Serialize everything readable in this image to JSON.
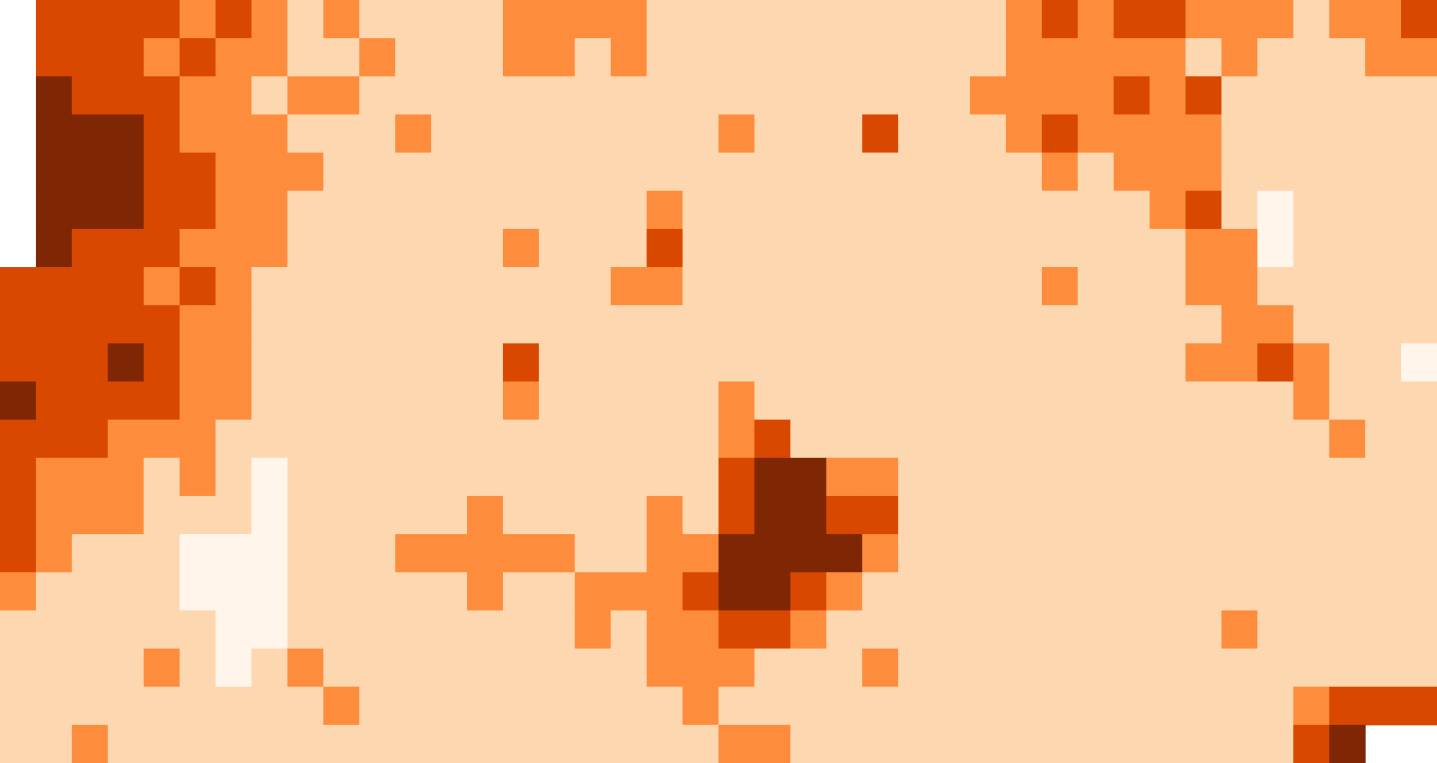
{
  "grid": [
    [
      null,
      3,
      3,
      3,
      3,
      2,
      3,
      2,
      1,
      2,
      1,
      1,
      1,
      1,
      2,
      2,
      2,
      2,
      1,
      1,
      1,
      1,
      1,
      1,
      1,
      1,
      1,
      1,
      2,
      3,
      2,
      3,
      3,
      2,
      2,
      2,
      1,
      2,
      2,
      3
    ],
    [
      null,
      3,
      3,
      3,
      2,
      3,
      2,
      2,
      1,
      1,
      2,
      1,
      1,
      1,
      2,
      2,
      1,
      2,
      1,
      1,
      1,
      1,
      1,
      1,
      1,
      1,
      1,
      1,
      2,
      2,
      2,
      2,
      2,
      1,
      2,
      1,
      1,
      1,
      2,
      2
    ],
    [
      null,
      4,
      3,
      3,
      3,
      2,
      2,
      1,
      2,
      2,
      1,
      1,
      1,
      1,
      1,
      1,
      1,
      1,
      1,
      1,
      1,
      1,
      1,
      1,
      1,
      1,
      1,
      2,
      2,
      2,
      2,
      3,
      2,
      3,
      1,
      1,
      1,
      1,
      1,
      1
    ],
    [
      null,
      4,
      4,
      4,
      3,
      2,
      2,
      2,
      1,
      1,
      1,
      2,
      1,
      1,
      1,
      1,
      1,
      1,
      1,
      1,
      2,
      1,
      1,
      1,
      3,
      1,
      1,
      1,
      2,
      3,
      2,
      2,
      2,
      2,
      1,
      1,
      1,
      1,
      1,
      1
    ],
    [
      null,
      4,
      4,
      4,
      3,
      3,
      2,
      2,
      2,
      1,
      1,
      1,
      1,
      1,
      1,
      1,
      1,
      1,
      1,
      1,
      1,
      1,
      1,
      1,
      1,
      1,
      1,
      1,
      1,
      2,
      1,
      2,
      2,
      2,
      1,
      1,
      1,
      1,
      1,
      1
    ],
    [
      null,
      4,
      4,
      4,
      3,
      3,
      2,
      2,
      1,
      1,
      1,
      1,
      1,
      1,
      1,
      1,
      1,
      1,
      2,
      1,
      1,
      1,
      1,
      1,
      1,
      1,
      1,
      1,
      1,
      1,
      1,
      1,
      2,
      3,
      1,
      0,
      1,
      1,
      1,
      1
    ],
    [
      null,
      4,
      3,
      3,
      3,
      2,
      2,
      2,
      1,
      1,
      1,
      1,
      1,
      1,
      2,
      1,
      1,
      1,
      3,
      1,
      1,
      1,
      1,
      1,
      1,
      1,
      1,
      1,
      1,
      1,
      1,
      1,
      1,
      2,
      2,
      0,
      1,
      1,
      1,
      1
    ],
    [
      3,
      3,
      3,
      3,
      2,
      3,
      2,
      1,
      1,
      1,
      1,
      1,
      1,
      1,
      1,
      1,
      1,
      2,
      2,
      1,
      1,
      1,
      1,
      1,
      1,
      1,
      1,
      1,
      1,
      2,
      1,
      1,
      1,
      2,
      2,
      1,
      1,
      1,
      1,
      1
    ],
    [
      3,
      3,
      3,
      3,
      3,
      2,
      2,
      1,
      1,
      1,
      1,
      1,
      1,
      1,
      1,
      1,
      1,
      1,
      1,
      1,
      1,
      1,
      1,
      1,
      1,
      1,
      1,
      1,
      1,
      1,
      1,
      1,
      1,
      1,
      2,
      2,
      1,
      1,
      1,
      1
    ],
    [
      3,
      3,
      3,
      4,
      3,
      2,
      2,
      1,
      1,
      1,
      1,
      1,
      1,
      1,
      3,
      1,
      1,
      1,
      1,
      1,
      1,
      1,
      1,
      1,
      1,
      1,
      1,
      1,
      1,
      1,
      1,
      1,
      1,
      2,
      2,
      3,
      2,
      1,
      1,
      0
    ],
    [
      4,
      3,
      3,
      3,
      3,
      2,
      2,
      1,
      1,
      1,
      1,
      1,
      1,
      1,
      2,
      1,
      1,
      1,
      1,
      1,
      2,
      1,
      1,
      1,
      1,
      1,
      1,
      1,
      1,
      1,
      1,
      1,
      1,
      1,
      1,
      1,
      2,
      1,
      1,
      1
    ],
    [
      3,
      3,
      3,
      2,
      2,
      2,
      1,
      1,
      1,
      1,
      1,
      1,
      1,
      1,
      1,
      1,
      1,
      1,
      1,
      1,
      2,
      3,
      1,
      1,
      1,
      1,
      1,
      1,
      1,
      1,
      1,
      1,
      1,
      1,
      1,
      1,
      1,
      2,
      1,
      1
    ],
    [
      3,
      2,
      2,
      2,
      1,
      2,
      1,
      0,
      1,
      1,
      1,
      1,
      1,
      1,
      1,
      1,
      1,
      1,
      1,
      1,
      3,
      4,
      4,
      2,
      2,
      1,
      1,
      1,
      1,
      1,
      1,
      1,
      1,
      1,
      1,
      1,
      1,
      1,
      1,
      1
    ],
    [
      3,
      2,
      2,
      2,
      1,
      1,
      1,
      0,
      1,
      1,
      1,
      1,
      1,
      2,
      1,
      1,
      1,
      1,
      2,
      1,
      3,
      4,
      4,
      3,
      3,
      1,
      1,
      1,
      1,
      1,
      1,
      1,
      1,
      1,
      1,
      1,
      1,
      1,
      1,
      1
    ],
    [
      3,
      2,
      1,
      1,
      1,
      0,
      0,
      0,
      1,
      1,
      1,
      2,
      2,
      2,
      2,
      2,
      1,
      1,
      2,
      2,
      4,
      4,
      4,
      4,
      2,
      1,
      1,
      1,
      1,
      1,
      1,
      1,
      1,
      1,
      1,
      1,
      1,
      1,
      1,
      1
    ],
    [
      2,
      1,
      1,
      1,
      1,
      0,
      0,
      0,
      1,
      1,
      1,
      1,
      1,
      2,
      1,
      1,
      2,
      2,
      2,
      3,
      4,
      4,
      3,
      2,
      1,
      1,
      1,
      1,
      1,
      1,
      1,
      1,
      1,
      1,
      1,
      1,
      1,
      1,
      1,
      1
    ],
    [
      1,
      1,
      1,
      1,
      1,
      1,
      0,
      0,
      1,
      1,
      1,
      1,
      1,
      1,
      1,
      1,
      2,
      1,
      2,
      2,
      3,
      3,
      2,
      1,
      1,
      1,
      1,
      1,
      1,
      1,
      1,
      1,
      1,
      1,
      2,
      1,
      1,
      1,
      1,
      1
    ],
    [
      1,
      1,
      1,
      1,
      2,
      1,
      0,
      1,
      2,
      1,
      1,
      1,
      1,
      1,
      1,
      1,
      1,
      1,
      2,
      2,
      2,
      1,
      1,
      1,
      2,
      1,
      1,
      1,
      1,
      1,
      1,
      1,
      1,
      1,
      1,
      1,
      1,
      1,
      1,
      1
    ],
    [
      1,
      1,
      1,
      1,
      1,
      1,
      1,
      1,
      1,
      2,
      1,
      1,
      1,
      1,
      1,
      1,
      1,
      1,
      1,
      2,
      1,
      1,
      1,
      1,
      1,
      1,
      1,
      1,
      1,
      1,
      1,
      1,
      1,
      1,
      1,
      1,
      2,
      3,
      3,
      3
    ],
    [
      1,
      1,
      2,
      1,
      1,
      1,
      1,
      1,
      1,
      1,
      1,
      1,
      1,
      1,
      1,
      1,
      1,
      1,
      1,
      1,
      2,
      2,
      1,
      1,
      1,
      1,
      1,
      1,
      1,
      1,
      1,
      1,
      1,
      1,
      1,
      1,
      3,
      4,
      null,
      null
    ]
  ],
  "colors": [
    "#fff5eb",
    "#fdd7b0",
    "#fd8d3c",
    "#d94801",
    "#7f2704"
  ]
}
